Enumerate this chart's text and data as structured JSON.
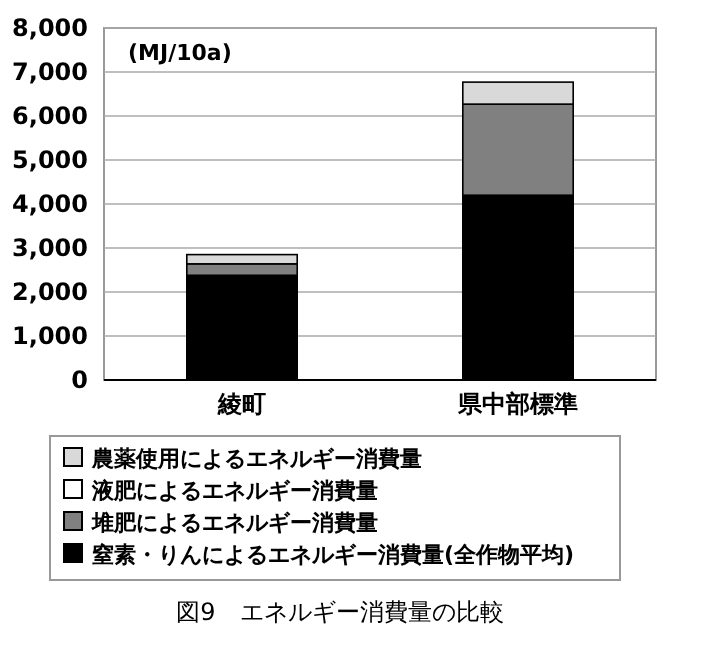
{
  "chart_data": {
    "type": "bar",
    "title": "図9　エネルギー消費量の比較",
    "ylabel": "(MJ/10a)",
    "categories": [
      "綾町",
      "県中部標準"
    ],
    "stacked": true,
    "legend": "bottom",
    "grid": "y",
    "ylim": [
      0,
      8000
    ],
    "yticks": [
      {
        "value": 0,
        "label": "0"
      },
      {
        "value": 1000,
        "label": "1,000"
      },
      {
        "value": 2000,
        "label": "2,000"
      },
      {
        "value": 3000,
        "label": "3,000"
      },
      {
        "value": 4000,
        "label": "4,000"
      },
      {
        "value": 5000,
        "label": "5,000"
      },
      {
        "value": 6000,
        "label": "6,000"
      },
      {
        "value": 7000,
        "label": "7,000"
      },
      {
        "value": 8000,
        "label": "8,000"
      }
    ],
    "series": [
      {
        "name": "窒素・りんによるエネルギー消費量(全作物平均)",
        "color": "#000000",
        "values": [
          2380,
          4200
        ]
      },
      {
        "name": "堆肥によるエネルギー消費量",
        "color": "#808080",
        "values": [
          260,
          2070
        ]
      },
      {
        "name": "液肥によるエネルギー消費量",
        "color": "#ffffff",
        "values": [
          null,
          null
        ]
      },
      {
        "name": "農薬使用によるエネルギー消費量",
        "color": "#d9d9d9",
        "values": [
          210,
          500
        ]
      }
    ]
  }
}
